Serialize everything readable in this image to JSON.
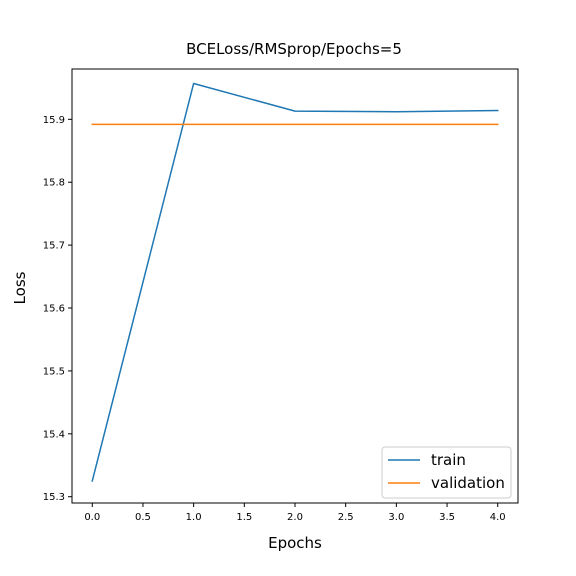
{
  "chart_data": {
    "type": "line",
    "title": "BCELoss/RMSprop/Epochs=5",
    "xlabel": "Epochs",
    "ylabel": "Loss",
    "xlim": [
      -0.2,
      4.2
    ],
    "ylim": [
      15.29,
      15.98
    ],
    "xticks": [
      0.0,
      0.5,
      1.0,
      1.5,
      2.0,
      2.5,
      3.0,
      3.5,
      4.0
    ],
    "xtick_labels": [
      "0.0",
      "0.5",
      "1.0",
      "1.5",
      "2.0",
      "2.5",
      "3.0",
      "3.5",
      "4.0"
    ],
    "yticks": [
      15.3,
      15.4,
      15.5,
      15.6,
      15.7,
      15.8,
      15.9
    ],
    "ytick_labels": [
      "15.3",
      "15.4",
      "15.5",
      "15.6",
      "15.7",
      "15.8",
      "15.9"
    ],
    "grid": false,
    "legend_position": "lower-right",
    "x": [
      0,
      1,
      2,
      3,
      4
    ],
    "series": [
      {
        "name": "train",
        "color": "#1f77b4",
        "values": [
          15.325,
          15.957,
          15.913,
          15.912,
          15.914
        ]
      },
      {
        "name": "validation",
        "color": "#ff7f0e",
        "values": [
          15.892,
          15.892,
          15.892,
          15.892,
          15.892
        ]
      }
    ]
  }
}
